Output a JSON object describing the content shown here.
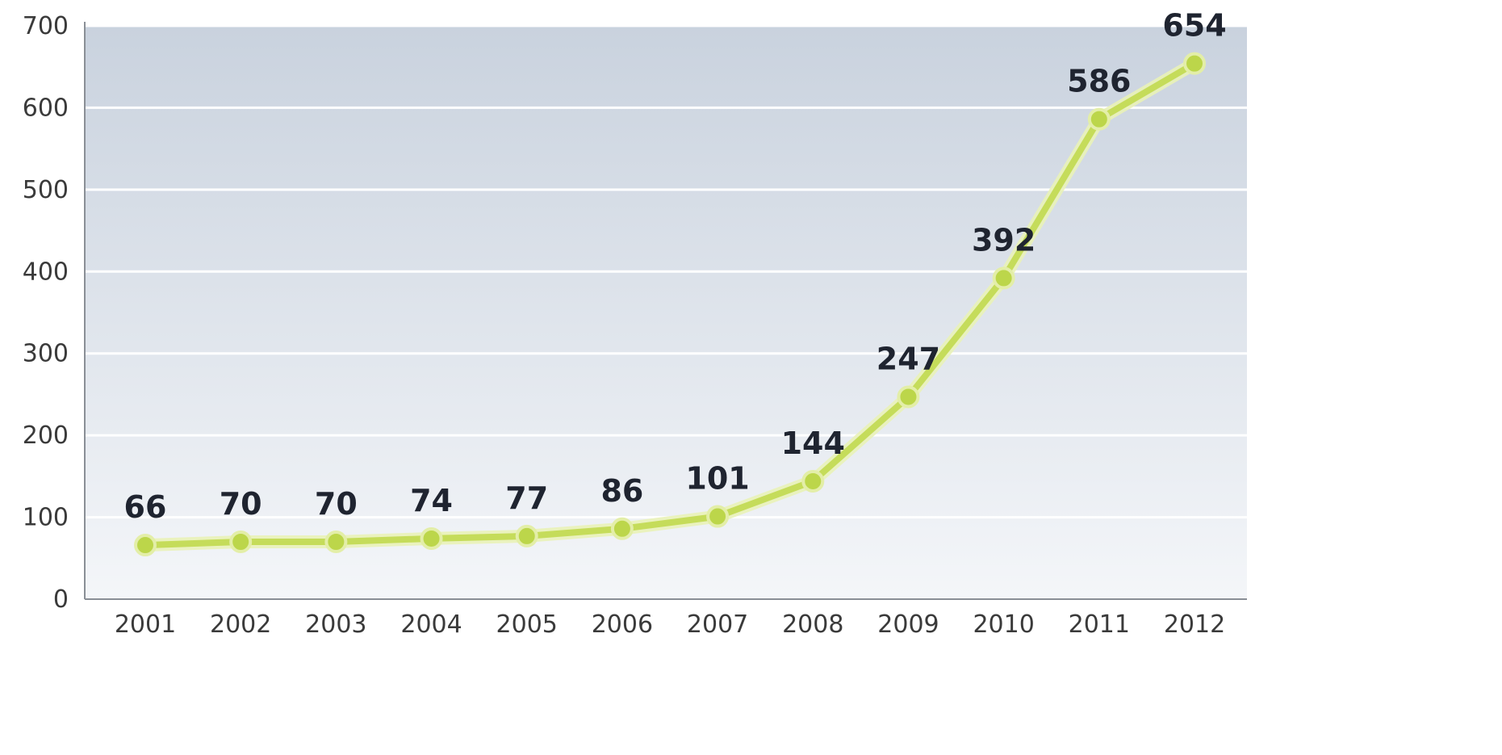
{
  "chart_data": {
    "type": "line",
    "title": "",
    "xlabel": "",
    "ylabel": "",
    "categories": [
      "2001",
      "2002",
      "2003",
      "2004",
      "2005",
      "2006",
      "2007",
      "2008",
      "2009",
      "2010",
      "2011",
      "2012"
    ],
    "series": [
      {
        "values": [
          66,
          70,
          70,
          74,
          77,
          86,
          101,
          144,
          247,
          392,
          586,
          654
        ],
        "data_labels": [
          "66",
          "70",
          "70",
          "74",
          "77",
          "86",
          "101",
          "144",
          "247",
          "392",
          "586",
          "654"
        ]
      }
    ],
    "ylim": [
      0,
      700
    ],
    "yticks": [
      0,
      100,
      200,
      300,
      400,
      500,
      600,
      700
    ],
    "ytick_labels": [
      "0",
      "100",
      "200",
      "300",
      "400",
      "500",
      "600",
      "700"
    ],
    "grid": true,
    "legend": "none",
    "colors": {
      "line": "#c5dc5a",
      "marker": "#bcd64a",
      "plot_bg_top": "#c9d2de",
      "plot_bg_bottom": "#f4f6f9",
      "gridline": "#ffffff",
      "axis": "#8a8f96"
    }
  }
}
